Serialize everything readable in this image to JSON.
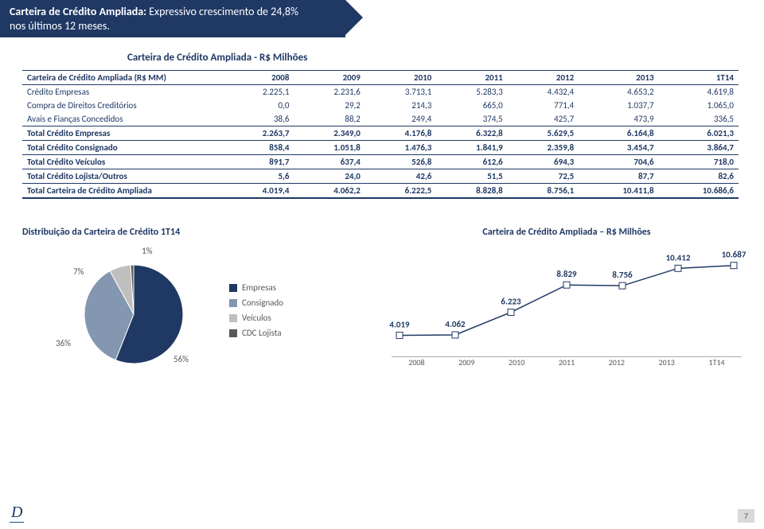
{
  "banner": {
    "line1": "Carteira de Crédito Ampliada:",
    "line1_rest": " Expressivo crescimento de 24,8%",
    "line2": "nos últimos 12 meses."
  },
  "subtitle": "Carteira de Crédito Ampliada - R$ Milhões",
  "table": {
    "header": [
      "Carteira de Crédito Ampliada (R$ MM)",
      "2008",
      "2009",
      "2010",
      "2011",
      "2012",
      "2013",
      "1T14"
    ],
    "rows": [
      {
        "cells": [
          "Crédito Empresas",
          "2.225,1",
          "2.231,6",
          "3.713,1",
          "5.283,3",
          "4.432,4",
          "4.653,2",
          "4.619,8"
        ],
        "type": "plain"
      },
      {
        "cells": [
          "Compra de Direitos Creditórios",
          "0,0",
          "29,2",
          "214,3",
          "665,0",
          "771,4",
          "1.037,7",
          "1.065,0"
        ],
        "type": "plain"
      },
      {
        "cells": [
          "Avais e Fianças Concedidos",
          "38,6",
          "88,2",
          "249,4",
          "374,5",
          "425,7",
          "473,9",
          "336,5"
        ],
        "type": "plain"
      },
      {
        "cells": [
          "Total Crédito Empresas",
          "2.263,7",
          "2.349,0",
          "4.176,8",
          "6.322,8",
          "5.629,5",
          "6.164,8",
          "6.021,3"
        ],
        "type": "total"
      },
      {
        "cells": [
          "Total Crédito Consignado",
          "858,4",
          "1.051,8",
          "1.476,3",
          "1.841,9",
          "2.359,8",
          "3.454,7",
          "3.864,7"
        ],
        "type": "total"
      },
      {
        "cells": [
          "Total Crédito Veículos",
          "891,7",
          "637,4",
          "526,8",
          "612,6",
          "694,3",
          "704,6",
          "718,0"
        ],
        "type": "total"
      },
      {
        "cells": [
          "Total Crédito Lojista/Outros",
          "5,6",
          "24,0",
          "42,6",
          "51,5",
          "72,5",
          "87,7",
          "82,6"
        ],
        "type": "total"
      },
      {
        "cells": [
          "Total Carteira de Crédito Ampliada",
          "4.019,4",
          "4.062,2",
          "6.222,5",
          "8.828,8",
          "8.756,1",
          "10.411,8",
          "10.686,6"
        ],
        "type": "grand"
      }
    ]
  },
  "pie": {
    "title": "Distribuição da Carteira de Crédito  1T14",
    "slices": [
      {
        "label": "Empresas",
        "value": 56,
        "color": "#1f3864"
      },
      {
        "label": "Consignado",
        "value": 36,
        "color": "#8497b0"
      },
      {
        "label": "Veículos",
        "value": 7,
        "color": "#bfbfbf"
      },
      {
        "label": "CDC Lojista",
        "value": 1,
        "color": "#595959"
      }
    ],
    "outer_labels": [
      "1%",
      "7%",
      "36%",
      "56%"
    ]
  },
  "line": {
    "title": "Carteira de Crédito Ampliada – R$ Milhões",
    "categories": [
      "2008",
      "2009",
      "2010",
      "2011",
      "2012",
      "2013",
      "1T14"
    ],
    "values": [
      4019,
      4062,
      6223,
      8829,
      8756,
      10412,
      10687
    ],
    "labels": [
      "4.019",
      "4.062",
      "6.223",
      "8.829",
      "8.756",
      "10.412",
      "10.687"
    ],
    "ymin": 3000,
    "ymax": 11500,
    "line_color": "#1f3864",
    "marker_color": "#ffffff",
    "marker_border": "#1f3864"
  },
  "page_number": "7",
  "logo": "D"
}
